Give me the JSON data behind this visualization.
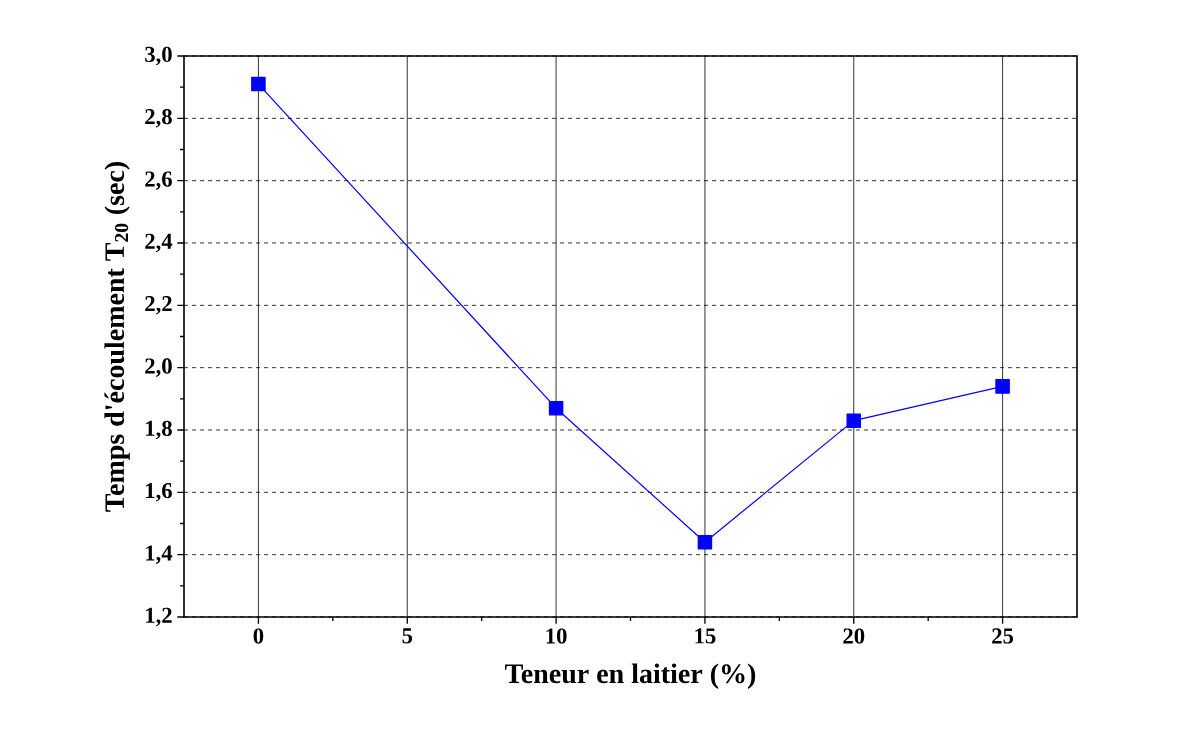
{
  "chart_data": {
    "type": "line",
    "xlabel": "Teneur en  laitier (%)",
    "ylabel": "Temps d'écoulement T$_{20}$ (sec)",
    "x": [
      0,
      10,
      15,
      20,
      25
    ],
    "series": [
      {
        "color": "#0000ff",
        "values": [
          2.91,
          1.87,
          1.44,
          1.83,
          1.94
        ]
      }
    ],
    "marker": "square",
    "line_style": "solid",
    "grid": true,
    "xlim": [
      -2.5,
      27.5
    ],
    "xticks": [
      0,
      5,
      10,
      15,
      20,
      25
    ],
    "ylim": [
      1.2,
      3.0
    ],
    "yticks": [
      {
        "value": 1.2,
        "label": "1,2"
      },
      {
        "value": 1.4,
        "label": "1,4"
      },
      {
        "value": 1.6,
        "label": "1,6"
      },
      {
        "value": 1.8,
        "label": "1,8"
      },
      {
        "value": 2.0,
        "label": "2,0"
      },
      {
        "value": 2.2,
        "label": "2,2"
      },
      {
        "value": 2.4,
        "label": "2,4"
      },
      {
        "value": 2.6,
        "label": "2,6"
      },
      {
        "value": 2.8,
        "label": "2,8"
      },
      {
        "value": 3.0,
        "label": "3,0"
      }
    ]
  }
}
